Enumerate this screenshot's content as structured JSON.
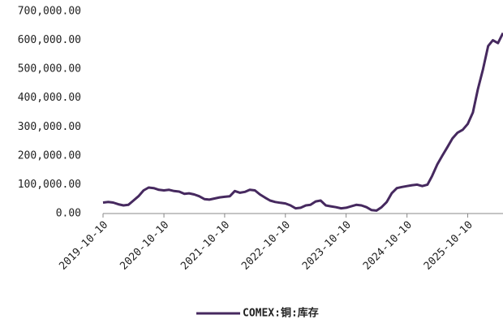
{
  "chart_data": {
    "type": "line",
    "x": [
      "2019-10-10",
      "2019-11-10",
      "2019-12-10",
      "2020-01-10",
      "2020-02-10",
      "2020-03-10",
      "2020-04-10",
      "2020-05-10",
      "2020-06-10",
      "2020-07-10",
      "2020-08-10",
      "2020-09-10",
      "2020-10-10",
      "2020-11-10",
      "2020-12-10",
      "2021-01-10",
      "2021-02-10",
      "2021-03-10",
      "2021-04-10",
      "2021-05-10",
      "2021-06-10",
      "2021-07-10",
      "2021-08-10",
      "2021-09-10",
      "2021-10-10",
      "2021-11-10",
      "2021-12-10",
      "2022-01-10",
      "2022-02-10",
      "2022-03-10",
      "2022-04-10",
      "2022-05-10",
      "2022-06-10",
      "2022-07-10",
      "2022-08-10",
      "2022-09-10",
      "2022-10-10",
      "2022-11-10",
      "2022-12-10",
      "2023-01-10",
      "2023-02-10",
      "2023-03-10",
      "2023-04-10",
      "2023-05-10",
      "2023-06-10",
      "2023-07-10",
      "2023-08-10",
      "2023-09-10",
      "2023-10-10",
      "2023-11-10",
      "2023-12-10",
      "2024-01-10",
      "2024-02-10",
      "2024-03-10",
      "2024-04-10",
      "2024-05-10",
      "2024-06-10",
      "2024-07-10",
      "2024-08-10",
      "2024-09-10",
      "2024-10-10",
      "2024-11-10",
      "2024-12-10",
      "2025-01-10",
      "2025-02-10",
      "2025-03-10",
      "2025-04-10",
      "2025-05-10",
      "2025-06-10",
      "2025-07-10",
      "2025-08-10",
      "2025-09-10",
      "2025-10-10",
      "2025-11-10",
      "2025-12-10",
      "2026-01-10",
      "2026-02-10",
      "2026-03-10",
      "2026-04-10",
      "2026-05-10"
    ],
    "series": [
      {
        "name": "COMEX:铜:库存",
        "color": "#46295f",
        "values": [
          38000,
          40000,
          38000,
          32000,
          28000,
          30000,
          45000,
          60000,
          80000,
          90000,
          88000,
          82000,
          80000,
          82000,
          78000,
          76000,
          68000,
          70000,
          66000,
          60000,
          50000,
          48000,
          52000,
          56000,
          58000,
          60000,
          78000,
          72000,
          75000,
          82000,
          80000,
          66000,
          55000,
          45000,
          40000,
          37000,
          35000,
          28000,
          18000,
          20000,
          28000,
          30000,
          42000,
          45000,
          28000,
          25000,
          22000,
          18000,
          20000,
          25000,
          30000,
          28000,
          22000,
          12000,
          10000,
          22000,
          40000,
          70000,
          88000,
          92000,
          95000,
          98000,
          100000,
          95000,
          100000,
          130000,
          170000,
          200000,
          230000,
          260000,
          280000,
          290000,
          310000,
          350000,
          430000,
          500000,
          580000,
          600000,
          590000,
          625000
        ]
      }
    ],
    "xlim": [
      "2019-10-10",
      "2026-05-10"
    ],
    "xticks": [
      "2019-10-10",
      "2020-10-10",
      "2021-10-10",
      "2022-10-10",
      "2023-10-10",
      "2024-10-10",
      "2025-10-10"
    ],
    "ylim": [
      0,
      700000
    ],
    "yticks": [
      {
        "value": 0,
        "label": "0.00"
      },
      {
        "value": 100000,
        "label": "100,000.00"
      },
      {
        "value": 200000,
        "label": "200,000.00"
      },
      {
        "value": 300000,
        "label": "300,000.00"
      },
      {
        "value": 400000,
        "label": "400,000.00"
      },
      {
        "value": 500000,
        "label": "500,000.00"
      },
      {
        "value": 600000,
        "label": "600,000.00"
      },
      {
        "value": 700000,
        "label": "700,000.00"
      }
    ],
    "grid": false,
    "legend": "bottom"
  }
}
